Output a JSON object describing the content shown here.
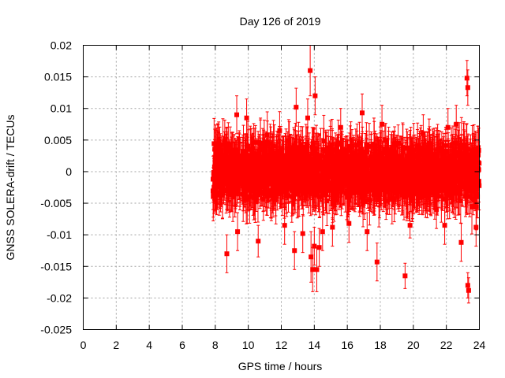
{
  "chart_data": {
    "type": "scatter",
    "title": "Day 126 of 2019",
    "xlabel": "GPS time / hours",
    "ylabel": "GNSS SOLERA-drift / TECUs",
    "xlim": [
      0,
      24
    ],
    "ylim": [
      -0.025,
      0.02
    ],
    "xticks": [
      "0",
      "2",
      "4",
      "6",
      "8",
      "10",
      "12",
      "14",
      "16",
      "18",
      "20",
      "22",
      "24"
    ],
    "yticks": [
      "0.02",
      "0.015",
      "0.01",
      "0.005",
      "0",
      "-0.005",
      "-0.01",
      "-0.015",
      "-0.02",
      "-0.025"
    ],
    "grid": true,
    "error_bars": true,
    "series": [
      {
        "color": "#ff0000",
        "marker": "square",
        "data_start_hour": 7.85,
        "data_end_hour": 24.0,
        "typical_spread": 0.004,
        "typical_error": 0.0035,
        "outliers": [
          {
            "x": 8.7,
            "y": -0.013,
            "err": 0.003
          },
          {
            "x": 9.3,
            "y": 0.009,
            "err": 0.003
          },
          {
            "x": 9.35,
            "y": -0.0095,
            "err": 0.003
          },
          {
            "x": 9.9,
            "y": 0.0085,
            "err": 0.003
          },
          {
            "x": 10.6,
            "y": -0.011,
            "err": 0.0025
          },
          {
            "x": 11.9,
            "y": 0.0065,
            "err": 0.003
          },
          {
            "x": 12.2,
            "y": -0.0085,
            "err": 0.003
          },
          {
            "x": 12.8,
            "y": -0.0125,
            "err": 0.003
          },
          {
            "x": 12.9,
            "y": 0.0102,
            "err": 0.003
          },
          {
            "x": 13.3,
            "y": -0.0098,
            "err": 0.003
          },
          {
            "x": 13.6,
            "y": 0.0085,
            "err": 0.003
          },
          {
            "x": 13.75,
            "y": 0.016,
            "err": 0.004
          },
          {
            "x": 13.8,
            "y": -0.0135,
            "err": 0.004
          },
          {
            "x": 13.9,
            "y": -0.0155,
            "err": 0.0035
          },
          {
            "x": 14.0,
            "y": -0.0118,
            "err": 0.003
          },
          {
            "x": 14.05,
            "y": 0.012,
            "err": 0.003
          },
          {
            "x": 14.15,
            "y": -0.0155,
            "err": 0.0035
          },
          {
            "x": 14.3,
            "y": -0.012,
            "err": 0.003
          },
          {
            "x": 14.5,
            "y": -0.0095,
            "err": 0.003
          },
          {
            "x": 15.1,
            "y": -0.0088,
            "err": 0.003
          },
          {
            "x": 15.6,
            "y": 0.007,
            "err": 0.003
          },
          {
            "x": 16.1,
            "y": -0.0082,
            "err": 0.003
          },
          {
            "x": 16.9,
            "y": 0.0093,
            "err": 0.003
          },
          {
            "x": 17.2,
            "y": -0.0095,
            "err": 0.003
          },
          {
            "x": 17.8,
            "y": -0.0143,
            "err": 0.003
          },
          {
            "x": 18.1,
            "y": 0.0075,
            "err": 0.003
          },
          {
            "x": 19.5,
            "y": -0.0165,
            "err": 0.002
          },
          {
            "x": 19.8,
            "y": -0.0085,
            "err": 0.002
          },
          {
            "x": 20.6,
            "y": 0.006,
            "err": 0.003
          },
          {
            "x": 21.4,
            "y": -0.006,
            "err": 0.003
          },
          {
            "x": 21.9,
            "y": -0.0085,
            "err": 0.003
          },
          {
            "x": 22.1,
            "y": 0.007,
            "err": 0.003
          },
          {
            "x": 22.6,
            "y": 0.0075,
            "err": 0.003
          },
          {
            "x": 22.9,
            "y": -0.0112,
            "err": 0.003
          },
          {
            "x": 23.25,
            "y": 0.0148,
            "err": 0.0028
          },
          {
            "x": 23.3,
            "y": 0.0133,
            "err": 0.0028
          },
          {
            "x": 23.3,
            "y": -0.018,
            "err": 0.002
          },
          {
            "x": 23.35,
            "y": -0.0188,
            "err": 0.002
          },
          {
            "x": 23.8,
            "y": -0.0088,
            "err": 0.003
          }
        ]
      }
    ]
  }
}
